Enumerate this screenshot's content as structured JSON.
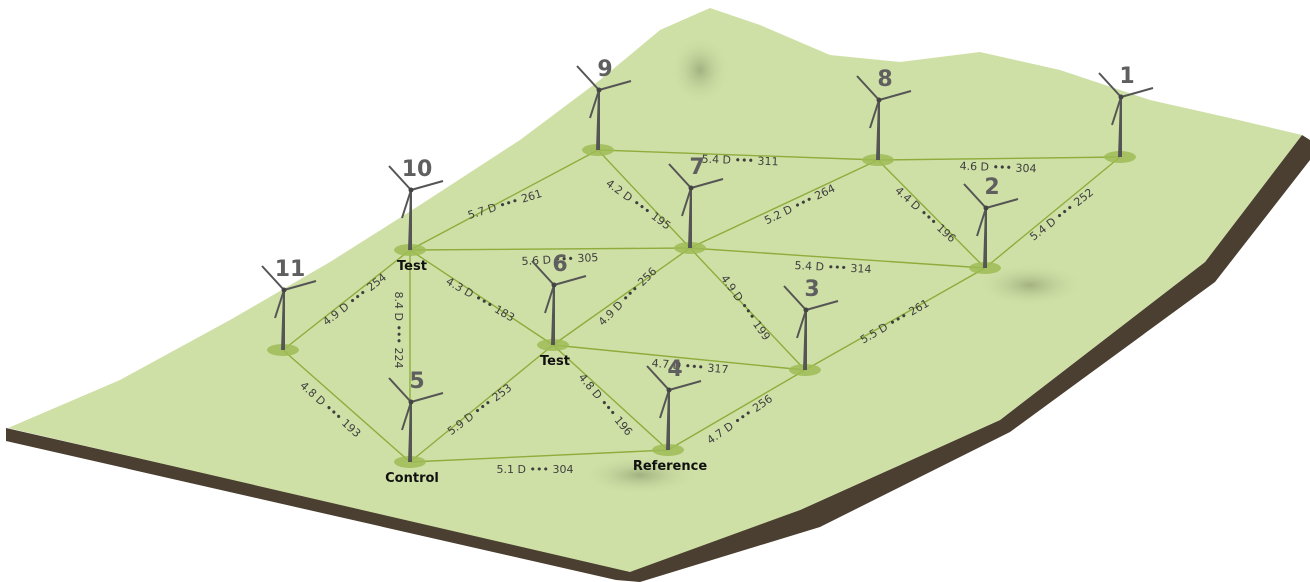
{
  "turbines": [
    {
      "number": "1"
    },
    {
      "number": "2"
    },
    {
      "number": "3"
    },
    {
      "number": "4",
      "role": "Reference"
    },
    {
      "number": "5",
      "role": "Control"
    },
    {
      "number": "6",
      "role": "Test"
    },
    {
      "number": "7"
    },
    {
      "number": "8"
    },
    {
      "number": "9"
    },
    {
      "number": "10",
      "role": "Test"
    },
    {
      "number": "11"
    }
  ],
  "edges": [
    {
      "label": "5.4 D ••• 311"
    },
    {
      "label": "4.6 D ••• 304"
    },
    {
      "label": "5.7 D ••• 261"
    },
    {
      "label": "4.2 D ••• 195"
    },
    {
      "label": "5.2 D ••• 264"
    },
    {
      "label": "4.4 D ••• 196"
    },
    {
      "label": "5.4 D ••• 252"
    },
    {
      "label": "5.6 D ••• 305"
    },
    {
      "label": "5.4 D ••• 314"
    },
    {
      "label": "4.9 D ••• 254"
    },
    {
      "label": "8.4 D ••• 224"
    },
    {
      "label": "4.3 D ••• 183"
    },
    {
      "label": "4.9 D ••• 256"
    },
    {
      "label": "4.9 D ••• 199"
    },
    {
      "label": "4.7 D ••• 317"
    },
    {
      "label": "5.5 D ••• 261"
    },
    {
      "label": "4.8 D ••• 193"
    },
    {
      "label": "5.9 D ••• 253"
    },
    {
      "label": "4.8 D ••• 196"
    },
    {
      "label": "4.7 D ••• 256"
    },
    {
      "label": "5.1 D ••• 304"
    }
  ]
}
